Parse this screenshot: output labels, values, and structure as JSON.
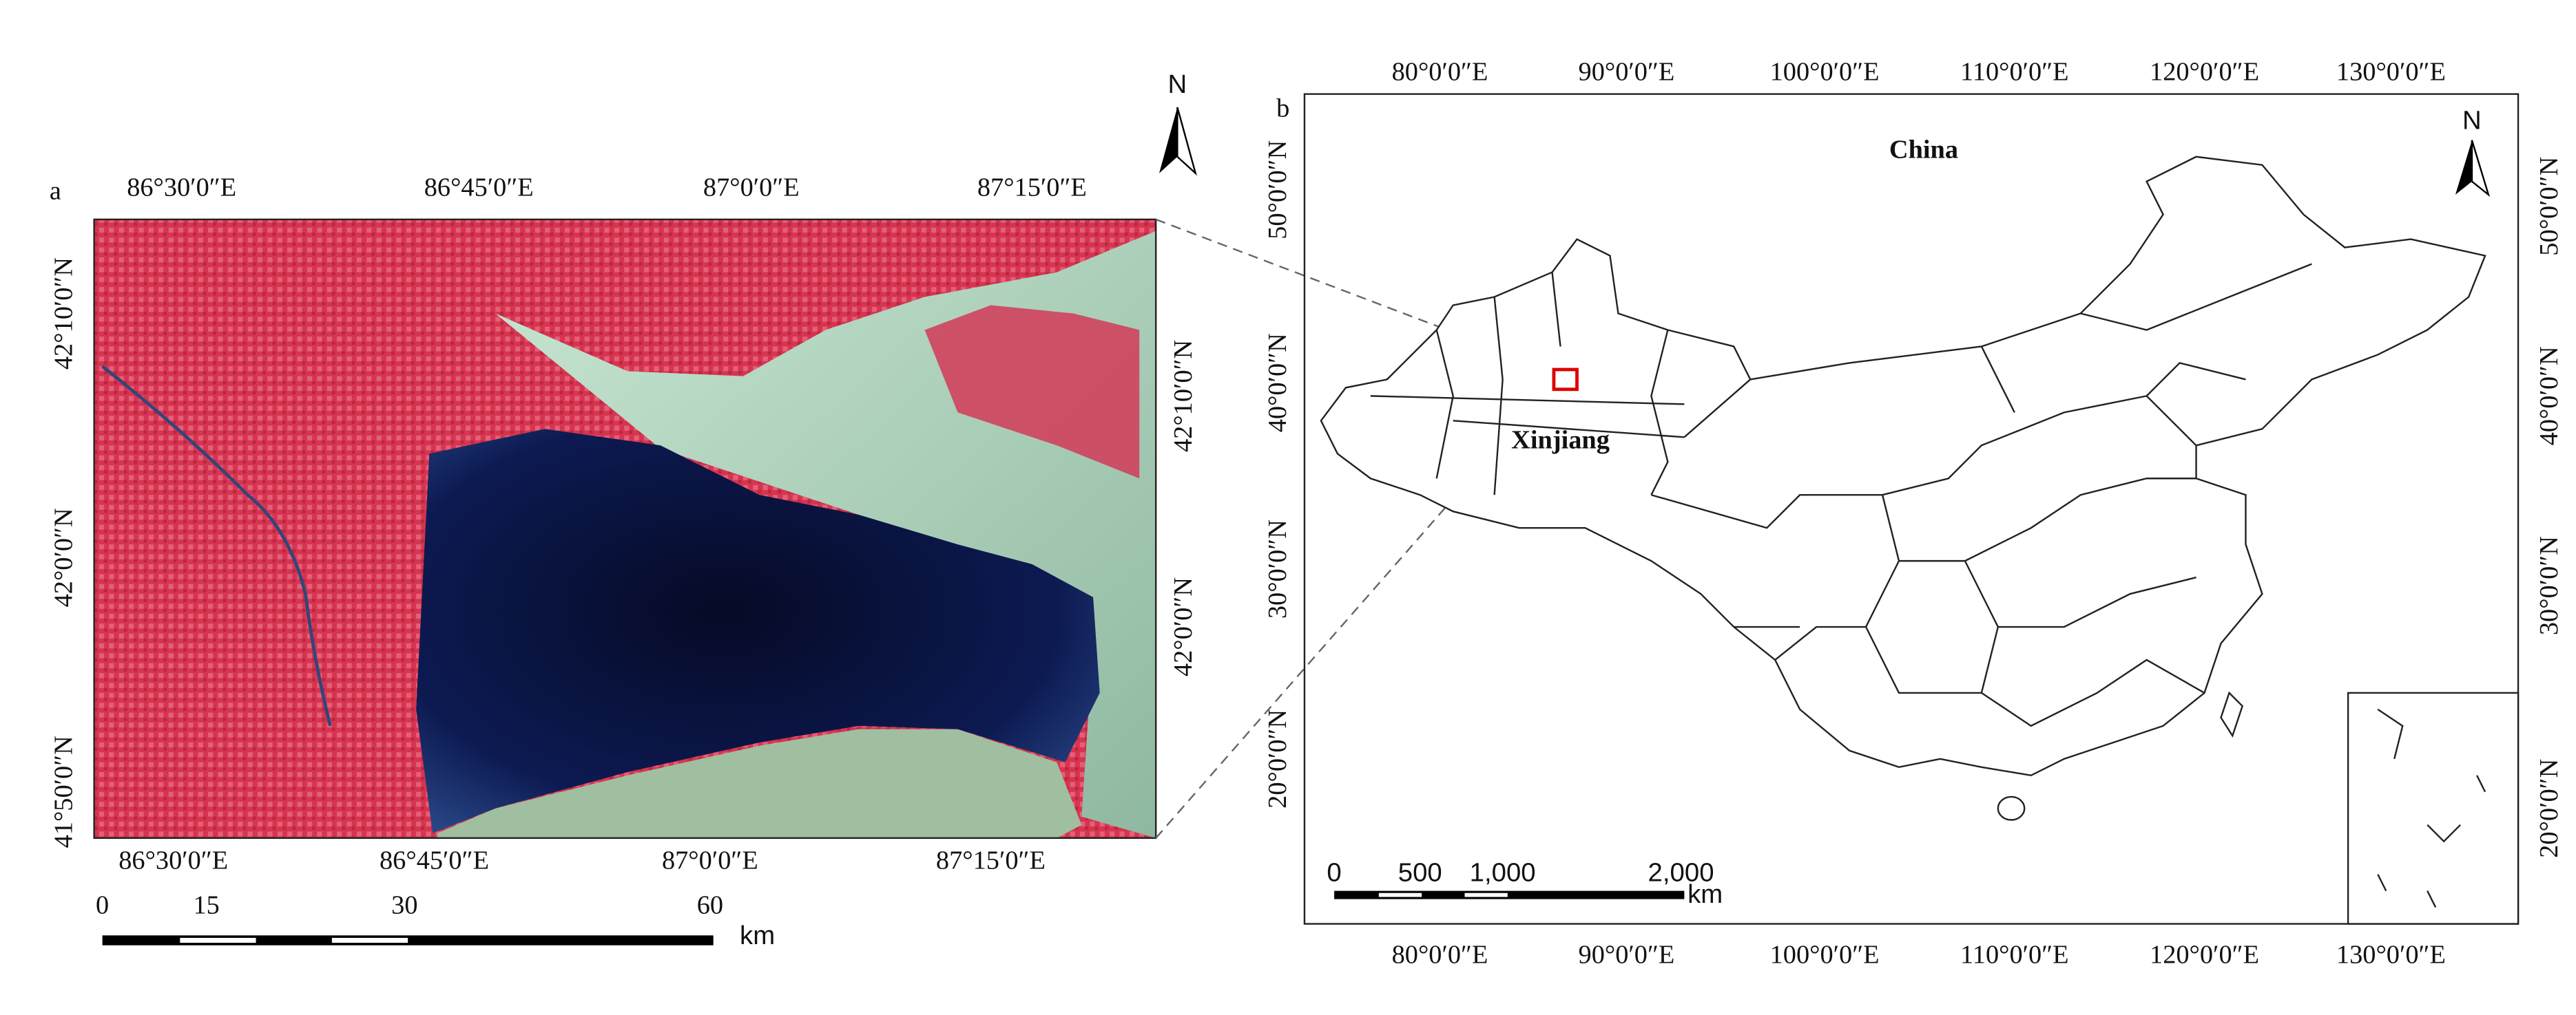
{
  "panel_a": {
    "label": "a",
    "top_labels": [
      "86°30′0″E",
      "86°45′0″E",
      "87°0′0″E",
      "87°15′0″E"
    ],
    "bottom_labels": [
      "86°30′0″E",
      "86°45′0″E",
      "87°0′0″E",
      "87°15′0″E"
    ],
    "left_labels": [
      "42°10′0″N",
      "42°0′0″N",
      "41°50′0″N"
    ],
    "right_labels": [
      "42°10′0″N",
      "42°0′0″N"
    ],
    "scale_labels": [
      "0",
      "15",
      "30",
      "60"
    ],
    "scale_unit": "km",
    "north": "N"
  },
  "panel_b": {
    "label": "b",
    "title": "China",
    "region_label": "Xinjiang",
    "top_labels": [
      "80°0′0″E",
      "90°0′0″E",
      "100°0′0″E",
      "110°0′0″E",
      "120°0′0″E",
      "130°0′0″E"
    ],
    "bottom_labels": [
      "80°0′0″E",
      "90°0′0″E",
      "100°0′0″E",
      "110°0′0″E",
      "120°0′0″E",
      "130°0′0″E"
    ],
    "left_labels": [
      "50°0′0″N",
      "40°0′0″N",
      "30°0′0″N",
      "20°0′0″N"
    ],
    "right_labels": [
      "50°0′0″N",
      "40°0′0″N",
      "30°0′0″N",
      "20°0′0″N"
    ],
    "scale_labels": [
      "0",
      "500",
      "1,000",
      "2,000"
    ],
    "scale_unit": "km",
    "north": "N"
  }
}
